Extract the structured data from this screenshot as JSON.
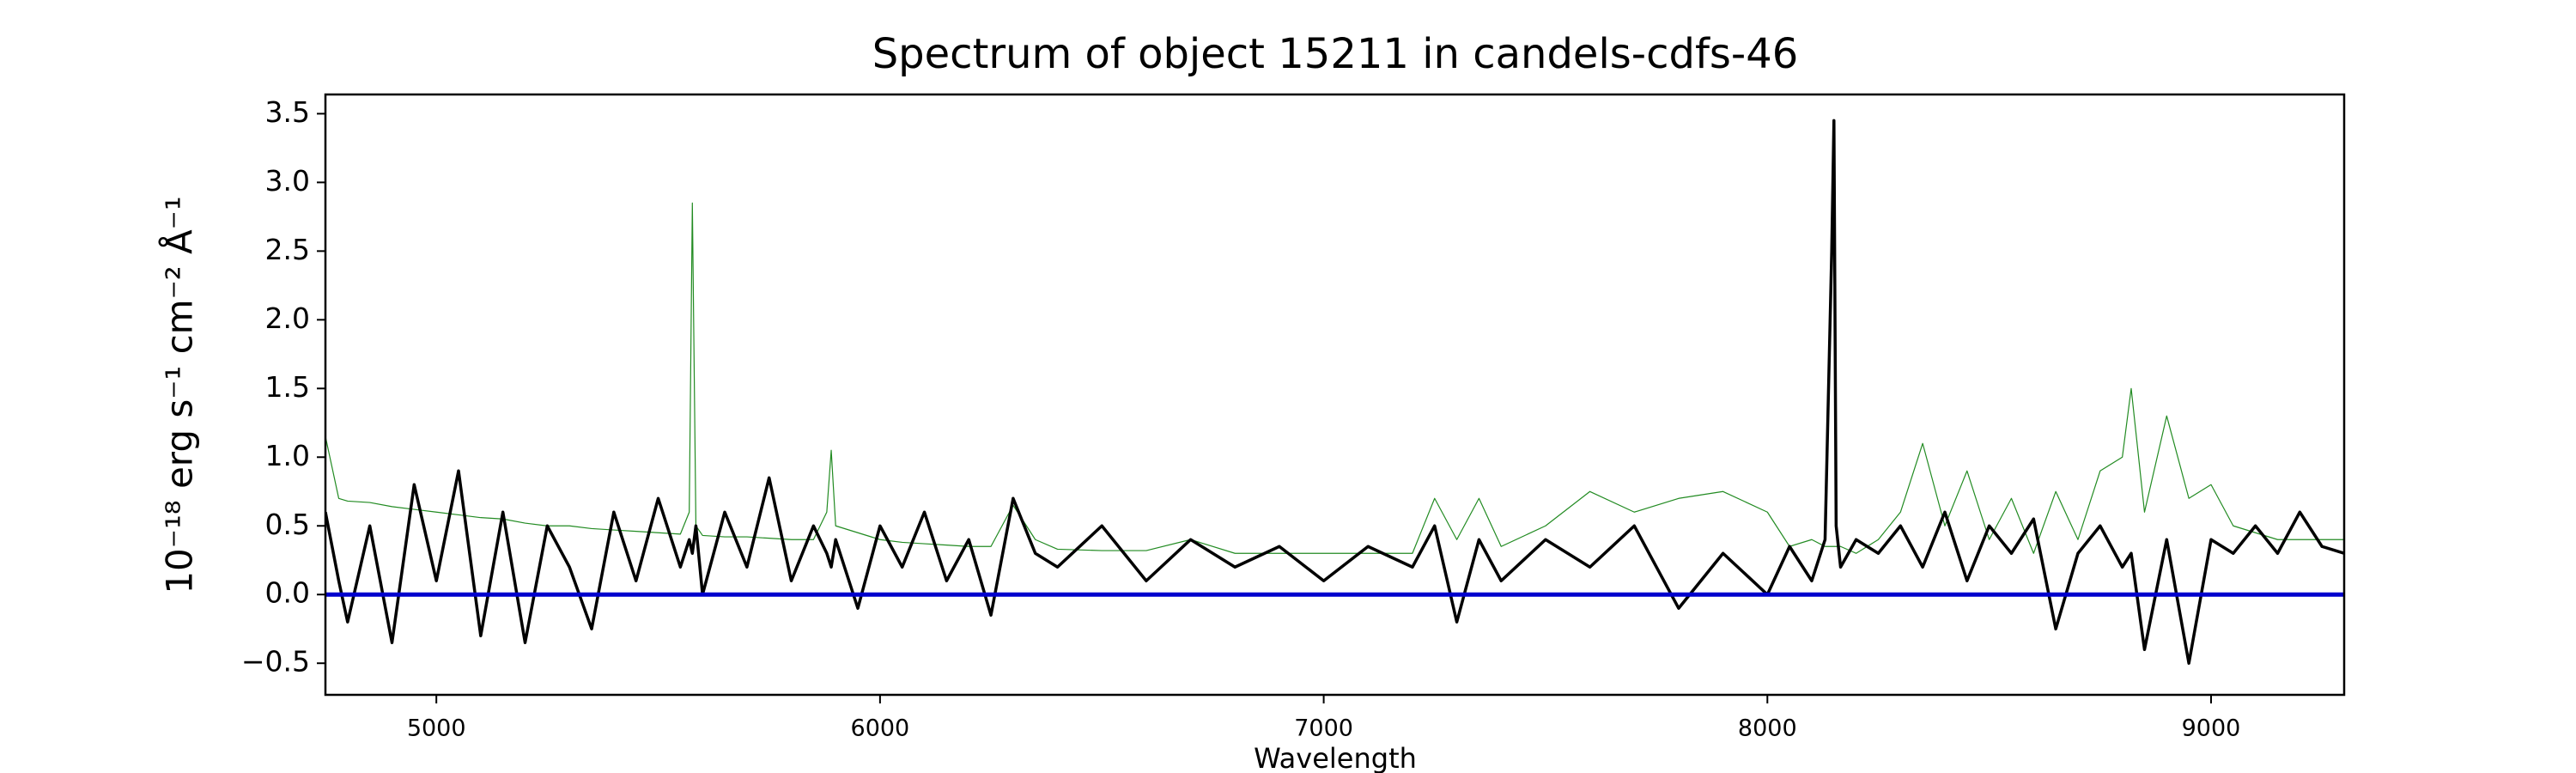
{
  "chart_data": {
    "type": "line",
    "title": "Spectrum of object 15211 in candels-cdfs-46",
    "xlabel": "Wavelength",
    "ylabel": "10⁻¹⁸ erg s⁻¹ cm⁻² Å⁻¹",
    "xlim": [
      4750,
      9300
    ],
    "ylim": [
      -0.73,
      3.64
    ],
    "xticks": [
      5000,
      6000,
      7000,
      8000,
      9000
    ],
    "yticks": [
      {
        "value": -0.5,
        "label": "−0.5"
      },
      {
        "value": 0,
        "label": "0.0"
      },
      0.5,
      {
        "value": 1,
        "label": "1.0"
      },
      1.5,
      {
        "value": 2,
        "label": "2.0"
      },
      2.5,
      {
        "value": 3,
        "label": "3.0"
      },
      3.5
    ],
    "x": [
      4750,
      4780,
      4800,
      4850,
      4900,
      4950,
      5000,
      5050,
      5100,
      5150,
      5200,
      5250,
      5300,
      5350,
      5400,
      5450,
      5500,
      5550,
      5570,
      5577,
      5585,
      5600,
      5650,
      5700,
      5750,
      5800,
      5850,
      5880,
      5890,
      5900,
      5950,
      6000,
      6050,
      6100,
      6150,
      6200,
      6250,
      6300,
      6350,
      6400,
      6500,
      6600,
      6700,
      6800,
      6900,
      7000,
      7100,
      7200,
      7250,
      7300,
      7350,
      7400,
      7500,
      7600,
      7700,
      7800,
      7900,
      8000,
      8050,
      8100,
      8130,
      8145,
      8150,
      8155,
      8165,
      8200,
      8250,
      8300,
      8350,
      8400,
      8450,
      8500,
      8550,
      8600,
      8650,
      8700,
      8750,
      8800,
      8820,
      8850,
      8900,
      8950,
      9000,
      9050,
      9100,
      9150,
      9200,
      9250,
      9300
    ],
    "series": [
      {
        "color": "#228b22",
        "width": 1.2,
        "values": [
          1.15,
          0.7,
          0.68,
          0.67,
          0.64,
          0.62,
          0.6,
          0.58,
          0.56,
          0.55,
          0.52,
          0.5,
          0.5,
          0.48,
          0.47,
          0.46,
          0.45,
          0.44,
          0.6,
          2.85,
          0.5,
          0.43,
          0.42,
          0.42,
          0.41,
          0.4,
          0.4,
          0.6,
          1.05,
          0.5,
          0.45,
          0.4,
          0.38,
          0.37,
          0.36,
          0.35,
          0.35,
          0.65,
          0.4,
          0.33,
          0.32,
          0.32,
          0.4,
          0.3,
          0.3,
          0.3,
          0.3,
          0.3,
          0.7,
          0.4,
          0.7,
          0.35,
          0.5,
          0.75,
          0.6,
          0.7,
          0.75,
          0.6,
          0.35,
          0.4,
          0.35,
          0.35,
          0.35,
          0.35,
          0.35,
          0.3,
          0.4,
          0.6,
          1.1,
          0.5,
          0.9,
          0.4,
          0.7,
          0.3,
          0.75,
          0.4,
          0.9,
          1.0,
          1.5,
          0.6,
          1.3,
          0.7,
          0.8,
          0.5,
          0.45,
          0.4,
          0.4,
          0.4,
          0.4
        ]
      },
      {
        "color": "#000000",
        "width": 3.5,
        "values": [
          0.6,
          0.1,
          -0.2,
          0.5,
          -0.35,
          0.8,
          0.1,
          0.9,
          -0.3,
          0.6,
          -0.35,
          0.5,
          0.2,
          -0.25,
          0.6,
          0.1,
          0.7,
          0.2,
          0.4,
          0.3,
          0.5,
          0.0,
          0.6,
          0.2,
          0.85,
          0.1,
          0.5,
          0.3,
          0.2,
          0.4,
          -0.1,
          0.5,
          0.2,
          0.6,
          0.1,
          0.4,
          -0.15,
          0.7,
          0.3,
          0.2,
          0.5,
          0.1,
          0.4,
          0.2,
          0.35,
          0.1,
          0.35,
          0.2,
          0.5,
          -0.2,
          0.4,
          0.1,
          0.4,
          0.2,
          0.5,
          -0.1,
          0.3,
          0.0,
          0.35,
          0.1,
          0.4,
          2.5,
          3.45,
          0.5,
          0.2,
          0.4,
          0.3,
          0.5,
          0.2,
          0.6,
          0.1,
          0.5,
          0.3,
          0.55,
          -0.25,
          0.3,
          0.5,
          0.2,
          0.3,
          -0.4,
          0.4,
          -0.5,
          0.4,
          0.3,
          0.5,
          0.3,
          0.6,
          0.35,
          0.3
        ]
      },
      {
        "color": "#0000cd",
        "width": 5,
        "x": [
          4750,
          9300
        ],
        "values": [
          0,
          0
        ]
      }
    ]
  }
}
